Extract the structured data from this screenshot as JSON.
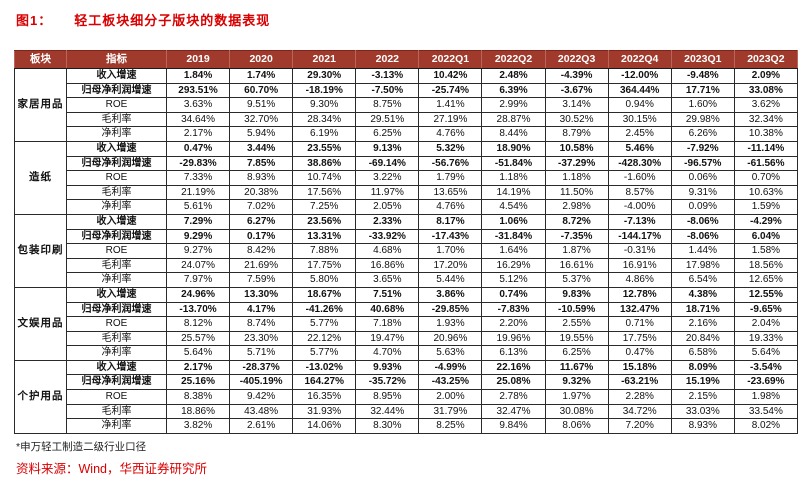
{
  "title": {
    "label": "图1：",
    "text": "轻工板块细分子版块的数据表现"
  },
  "footnote": "*申万轻工制造二级行业口径",
  "source": "资料来源：Wind，华西证券研究所",
  "colors": {
    "accent_red": "#d80000",
    "header_bg": "#a03a2c",
    "header_text": "#ffffff"
  },
  "table": {
    "col_headers": [
      "板块",
      "指标",
      "2019",
      "2020",
      "2021",
      "2022",
      "2022Q1",
      "2022Q2",
      "2022Q3",
      "2022Q4",
      "2023Q1",
      "2023Q2"
    ],
    "groups": [
      {
        "name": "家居用品",
        "rows": [
          {
            "metric": "收入增速",
            "bold": true,
            "values": [
              "1.84%",
              "1.74%",
              "29.30%",
              "-3.13%",
              "10.42%",
              "2.48%",
              "-4.39%",
              "-12.00%",
              "-9.48%",
              "2.09%"
            ]
          },
          {
            "metric": "归母净利润增速",
            "bold": true,
            "values": [
              "293.51%",
              "60.70%",
              "-18.19%",
              "-7.50%",
              "-25.74%",
              "6.39%",
              "-3.67%",
              "364.44%",
              "17.71%",
              "33.08%"
            ]
          },
          {
            "metric": "ROE",
            "bold": false,
            "values": [
              "3.63%",
              "9.51%",
              "9.30%",
              "8.75%",
              "1.41%",
              "2.99%",
              "3.14%",
              "0.94%",
              "1.60%",
              "3.62%"
            ]
          },
          {
            "metric": "毛利率",
            "bold": false,
            "values": [
              "34.64%",
              "32.70%",
              "28.34%",
              "29.51%",
              "27.19%",
              "28.87%",
              "30.52%",
              "30.15%",
              "29.98%",
              "32.34%"
            ]
          },
          {
            "metric": "净利率",
            "bold": false,
            "values": [
              "2.17%",
              "5.94%",
              "6.19%",
              "6.25%",
              "4.76%",
              "8.44%",
              "8.79%",
              "2.45%",
              "6.26%",
              "10.38%"
            ]
          }
        ]
      },
      {
        "name": "造纸",
        "rows": [
          {
            "metric": "收入增速",
            "bold": true,
            "values": [
              "0.47%",
              "3.44%",
              "23.55%",
              "9.13%",
              "5.32%",
              "18.90%",
              "10.58%",
              "5.46%",
              "-7.92%",
              "-11.14%"
            ]
          },
          {
            "metric": "归母净利润增速",
            "bold": true,
            "values": [
              "-29.83%",
              "7.85%",
              "38.86%",
              "-69.14%",
              "-56.76%",
              "-51.84%",
              "-37.29%",
              "-428.30%",
              "-96.57%",
              "-61.56%"
            ]
          },
          {
            "metric": "ROE",
            "bold": false,
            "values": [
              "7.33%",
              "8.93%",
              "10.74%",
              "3.22%",
              "1.79%",
              "1.18%",
              "1.18%",
              "-1.60%",
              "0.06%",
              "0.70%"
            ]
          },
          {
            "metric": "毛利率",
            "bold": false,
            "values": [
              "21.19%",
              "20.38%",
              "17.56%",
              "11.97%",
              "13.65%",
              "14.19%",
              "11.50%",
              "8.57%",
              "9.31%",
              "10.63%"
            ]
          },
          {
            "metric": "净利率",
            "bold": false,
            "values": [
              "5.61%",
              "7.02%",
              "7.25%",
              "2.05%",
              "4.76%",
              "4.54%",
              "2.98%",
              "-4.00%",
              "0.09%",
              "1.59%"
            ]
          }
        ]
      },
      {
        "name": "包装印刷",
        "rows": [
          {
            "metric": "收入增速",
            "bold": true,
            "values": [
              "7.29%",
              "6.27%",
              "23.56%",
              "2.33%",
              "8.17%",
              "1.06%",
              "8.72%",
              "-7.13%",
              "-8.06%",
              "-4.29%"
            ]
          },
          {
            "metric": "归母净利润增速",
            "bold": true,
            "values": [
              "9.29%",
              "0.17%",
              "13.31%",
              "-33.92%",
              "-17.43%",
              "-31.84%",
              "-7.35%",
              "-144.17%",
              "-8.06%",
              "6.04%"
            ]
          },
          {
            "metric": "ROE",
            "bold": false,
            "values": [
              "9.27%",
              "8.42%",
              "7.88%",
              "4.68%",
              "1.70%",
              "1.64%",
              "1.87%",
              "-0.31%",
              "1.44%",
              "1.58%"
            ]
          },
          {
            "metric": "毛利率",
            "bold": false,
            "values": [
              "24.07%",
              "21.69%",
              "17.75%",
              "16.86%",
              "17.20%",
              "16.29%",
              "16.61%",
              "16.91%",
              "17.98%",
              "18.56%"
            ]
          },
          {
            "metric": "净利率",
            "bold": false,
            "values": [
              "7.97%",
              "7.59%",
              "5.80%",
              "3.65%",
              "5.44%",
              "5.12%",
              "5.37%",
              "4.86%",
              "6.54%",
              "12.65%"
            ]
          }
        ]
      },
      {
        "name": "文娱用品",
        "rows": [
          {
            "metric": "收入增速",
            "bold": true,
            "values": [
              "24.96%",
              "13.30%",
              "18.67%",
              "7.51%",
              "3.86%",
              "0.74%",
              "9.83%",
              "12.78%",
              "4.38%",
              "12.55%"
            ]
          },
          {
            "metric": "归母净利润增速",
            "bold": true,
            "values": [
              "-13.70%",
              "4.17%",
              "-41.26%",
              "40.68%",
              "-29.85%",
              "-7.83%",
              "-10.59%",
              "132.47%",
              "18.71%",
              "-9.65%"
            ]
          },
          {
            "metric": "ROE",
            "bold": false,
            "values": [
              "8.12%",
              "8.74%",
              "5.77%",
              "7.18%",
              "1.93%",
              "2.20%",
              "2.55%",
              "0.71%",
              "2.16%",
              "2.04%"
            ]
          },
          {
            "metric": "毛利率",
            "bold": false,
            "values": [
              "25.57%",
              "23.30%",
              "22.12%",
              "19.47%",
              "20.96%",
              "19.96%",
              "19.55%",
              "17.75%",
              "20.84%",
              "19.33%"
            ]
          },
          {
            "metric": "净利率",
            "bold": false,
            "values": [
              "5.64%",
              "5.71%",
              "5.77%",
              "4.70%",
              "5.63%",
              "6.13%",
              "6.25%",
              "0.47%",
              "6.58%",
              "5.64%"
            ]
          }
        ]
      },
      {
        "name": "个护用品",
        "rows": [
          {
            "metric": "收入增速",
            "bold": true,
            "values": [
              "2.17%",
              "-28.37%",
              "-13.02%",
              "9.93%",
              "-4.99%",
              "22.16%",
              "11.67%",
              "15.18%",
              "8.09%",
              "-3.54%"
            ]
          },
          {
            "metric": "归母净利润增速",
            "bold": true,
            "values": [
              "25.16%",
              "-405.19%",
              "164.27%",
              "-35.72%",
              "-43.25%",
              "25.08%",
              "9.32%",
              "-63.21%",
              "15.19%",
              "-23.69%"
            ]
          },
          {
            "metric": "ROE",
            "bold": false,
            "values": [
              "8.38%",
              "9.42%",
              "16.35%",
              "8.95%",
              "2.00%",
              "2.78%",
              "1.97%",
              "2.28%",
              "2.15%",
              "1.98%"
            ]
          },
          {
            "metric": "毛利率",
            "bold": false,
            "values": [
              "18.86%",
              "43.48%",
              "31.93%",
              "32.44%",
              "31.79%",
              "32.47%",
              "30.08%",
              "34.72%",
              "33.03%",
              "33.54%"
            ]
          },
          {
            "metric": "净利率",
            "bold": false,
            "values": [
              "3.82%",
              "2.61%",
              "14.06%",
              "8.30%",
              "8.25%",
              "9.84%",
              "8.06%",
              "7.20%",
              "8.93%",
              "8.02%"
            ]
          }
        ]
      }
    ]
  }
}
